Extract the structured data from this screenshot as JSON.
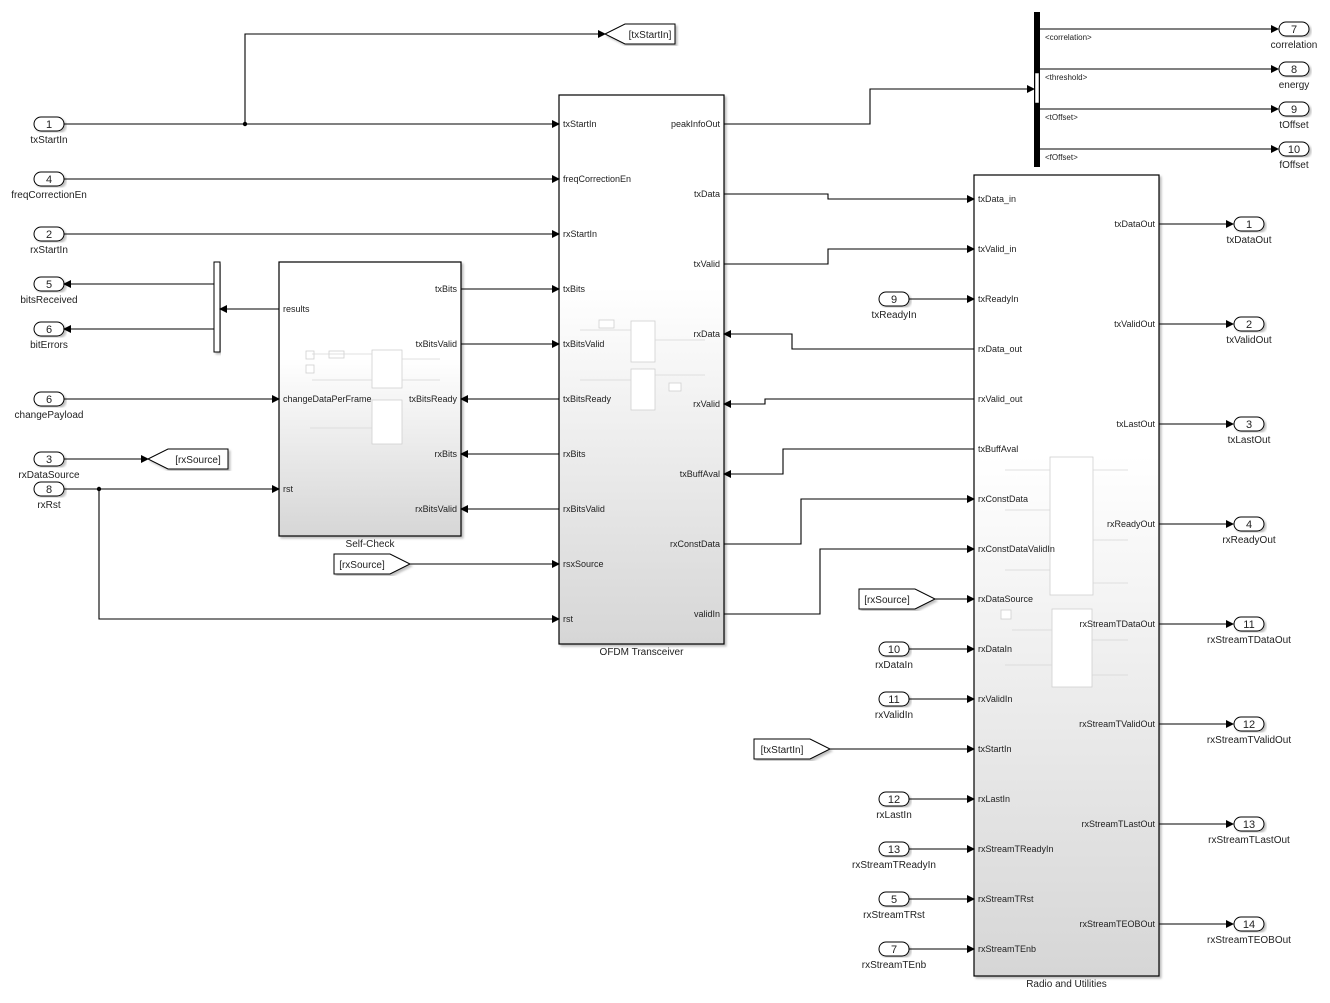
{
  "inports": [
    {
      "num": "1",
      "label": "txStartIn"
    },
    {
      "num": "4",
      "label": "freqCorrectionEn"
    },
    {
      "num": "2",
      "label": "rxStartIn"
    },
    {
      "num": "6",
      "label": "changePayload"
    },
    {
      "num": "3",
      "label": "rxDataSource"
    },
    {
      "num": "8",
      "label": "rxRst"
    },
    {
      "num": "9",
      "label": "txReadyIn"
    },
    {
      "num": "10",
      "label": "rxDataIn"
    },
    {
      "num": "11",
      "label": "rxValidIn"
    },
    {
      "num": "12",
      "label": "rxLastIn"
    },
    {
      "num": "13",
      "label": "rxStreamTReadyIn"
    },
    {
      "num": "5",
      "label": "rxStreamTRst"
    },
    {
      "num": "7",
      "label": "rxStreamTEnb"
    }
  ],
  "outports": [
    {
      "num": "5",
      "label": "bitsReceived"
    },
    {
      "num": "6",
      "label": "bitErrors"
    },
    {
      "num": "7",
      "label": "correlation"
    },
    {
      "num": "8",
      "label": "energy"
    },
    {
      "num": "9",
      "label": "tOffset"
    },
    {
      "num": "10",
      "label": "fOffset"
    },
    {
      "num": "1",
      "label": "txDataOut"
    },
    {
      "num": "2",
      "label": "txValidOut"
    },
    {
      "num": "3",
      "label": "txLastOut"
    },
    {
      "num": "4",
      "label": "rxReadyOut"
    },
    {
      "num": "11",
      "label": "rxStreamTDataOut"
    },
    {
      "num": "12",
      "label": "rxStreamTValidOut"
    },
    {
      "num": "13",
      "label": "rxStreamTLastOut"
    },
    {
      "num": "14",
      "label": "rxStreamTEOBOut"
    }
  ],
  "goto_tags": [
    "[txStartIn]",
    "[rxSource]"
  ],
  "from_tags": [
    "[rxSource]",
    "[rxSource]",
    "[txStartIn]"
  ],
  "bus_selector": {
    "signals": [
      "<correlation>",
      "<threshold>",
      "<tOffset>",
      "<fOffset>"
    ]
  },
  "blocks": {
    "self_check": {
      "name": "Self-Check",
      "left_ports": [
        "results",
        "changeDataPerFrame",
        "rst"
      ],
      "right_ports": [
        "txBits",
        "txBitsValid",
        "txBitsReady",
        "rxBits",
        "rxBitsValid"
      ]
    },
    "ofdm": {
      "name": "OFDM Transceiver",
      "left_ports": [
        "txStartIn",
        "freqCorrectionEn",
        "rxStartIn",
        "txBits",
        "txBitsValid",
        "txBitsReady",
        "rxBits",
        "rxBitsValid",
        "rsxSource",
        "rst"
      ],
      "right_ports": [
        "peakInfoOut",
        "txData",
        "txValid",
        "rxData",
        "rxValid",
        "txBuffAval",
        "rxConstData",
        "validIn"
      ]
    },
    "radio": {
      "name": "Radio and Utilities",
      "left_ports": [
        "txData_in",
        "txValid_in",
        "txReadyIn",
        "rxData_out",
        "rxValid_out",
        "txBuffAval",
        "rxConstData",
        "rxConstDataValidIn",
        "rxDataSource",
        "rxDataIn",
        "rxValidIn",
        "txStartIn",
        "rxLastIn",
        "rxStreamTReadyIn",
        "rxStreamTRst",
        "rxStreamTEnb"
      ],
      "right_ports": [
        "txDataOut",
        "txValidOut",
        "txLastOut",
        "rxReadyOut",
        "rxStreamTDataOut",
        "rxStreamTValidOut",
        "rxStreamTLastOut",
        "rxStreamTEOBOut"
      ]
    }
  }
}
